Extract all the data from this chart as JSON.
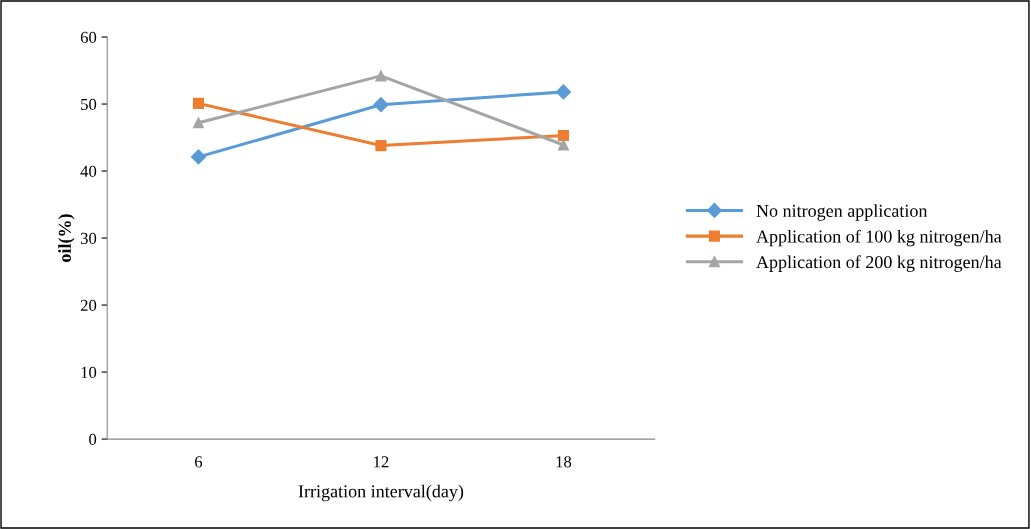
{
  "chart_data": {
    "type": "line",
    "xlabel": "Irrigation interval(day)",
    "ylabel": "oil(%)",
    "categories": [
      "6",
      "12",
      "18"
    ],
    "series": [
      {
        "name": "No nitrogen application",
        "color": "#5b9bd5",
        "marker": "diamond",
        "values": [
          42.1,
          49.9,
          51.8
        ]
      },
      {
        "name": "Application of 100 kg nitrogen/ha",
        "color": "#ed7d31",
        "marker": "square",
        "values": [
          50.1,
          43.8,
          45.3
        ]
      },
      {
        "name": "Application of 200 kg nitrogen/ha",
        "color": "#a5a5a5",
        "marker": "triangle",
        "values": [
          47.2,
          54.2,
          43.9
        ]
      }
    ],
    "ylim": [
      0,
      60
    ],
    "yticks": [
      0,
      10,
      20,
      30,
      40,
      50,
      60
    ],
    "grid": false,
    "legend": "right",
    "line_style": "solid"
  }
}
